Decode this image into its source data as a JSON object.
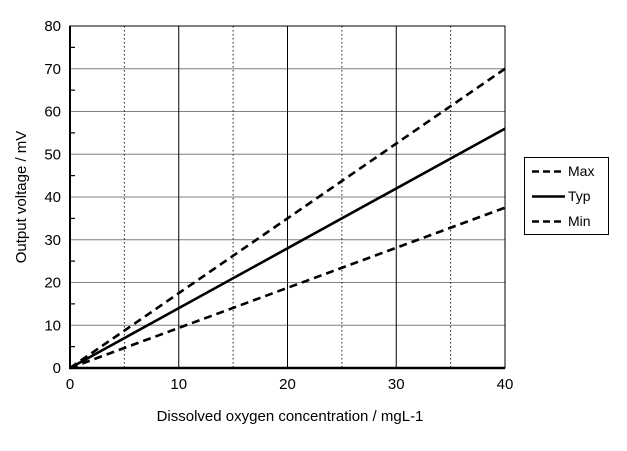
{
  "colors": {
    "background": "#ffffff",
    "frame": "#000000",
    "h_gridline": "#7f7f7f",
    "v_major_gridline": "#000000",
    "v_minor_gridline": "#1a1a1a",
    "text": "#000000"
  },
  "chart_data": {
    "type": "line",
    "title": "",
    "xlabel": "Dissolved oxygen concentration / mgL-1",
    "ylabel": "Output voltage / mV",
    "xlim": [
      0,
      40
    ],
    "ylim": [
      0,
      80
    ],
    "x_major_ticks": [
      0,
      10,
      20,
      30,
      40
    ],
    "x_minor_gridlines": [
      5,
      15,
      25,
      35
    ],
    "y_major_ticks": [
      0,
      10,
      20,
      30,
      40,
      50,
      60,
      70,
      80
    ],
    "y_minor_ticks": [
      5,
      15,
      25,
      35,
      45,
      55,
      65,
      75
    ],
    "grid": {
      "horizontal_major": true,
      "vertical_major": true,
      "vertical_minor_dotted": true
    },
    "legend_position": "right-outside",
    "series": [
      {
        "name": "Max",
        "style": "dashed",
        "color": "#000000",
        "x": [
          0,
          40
        ],
        "y": [
          0,
          70
        ]
      },
      {
        "name": "Typ",
        "style": "solid",
        "color": "#000000",
        "x": [
          0,
          40
        ],
        "y": [
          0,
          56
        ]
      },
      {
        "name": "Min",
        "style": "dashed",
        "color": "#000000",
        "x": [
          0,
          40
        ],
        "y": [
          0,
          37.5
        ]
      }
    ]
  }
}
